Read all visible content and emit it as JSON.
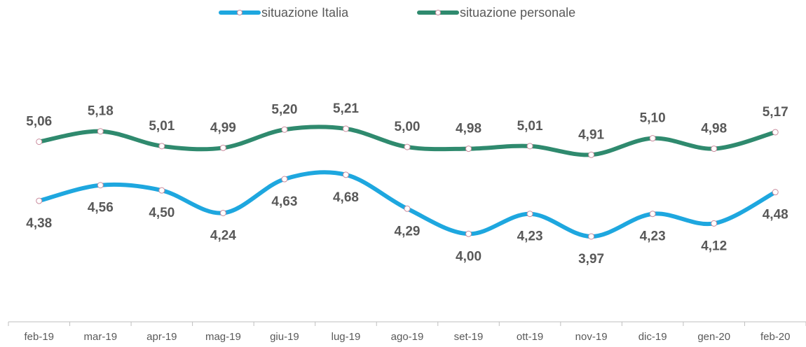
{
  "chart_data": {
    "type": "line",
    "categories": [
      "feb-19",
      "mar-19",
      "apr-19",
      "mag-19",
      "giu-19",
      "lug-19",
      "ago-19",
      "set-19",
      "ott-19",
      "nov-19",
      "dic-19",
      "gen-20",
      "feb-20"
    ],
    "series": [
      {
        "name": "situazione Italia",
        "color": "#1ea7df",
        "values": [
          4.38,
          4.56,
          4.5,
          4.24,
          4.63,
          4.68,
          4.29,
          4.0,
          4.23,
          3.97,
          4.23,
          4.12,
          4.48
        ],
        "value_labels": [
          "4,38",
          "4,56",
          "4,50",
          "4,24",
          "4,63",
          "4,68",
          "4,29",
          "4,00",
          "4,23",
          "3,97",
          "4,23",
          "4,12",
          "4,48"
        ]
      },
      {
        "name": "situazione personale",
        "color": "#2f8a6e",
        "values": [
          5.06,
          5.18,
          5.01,
          4.99,
          5.2,
          5.21,
          5.0,
          4.98,
          5.01,
          4.91,
          5.1,
          4.98,
          5.17
        ],
        "value_labels": [
          "5,06",
          "5,18",
          "5,01",
          "4,99",
          "5,20",
          "5,21",
          "5,00",
          "4,98",
          "5,01",
          "4,91",
          "5,10",
          "4,98",
          "5,17"
        ]
      }
    ],
    "legend": "top"
  }
}
